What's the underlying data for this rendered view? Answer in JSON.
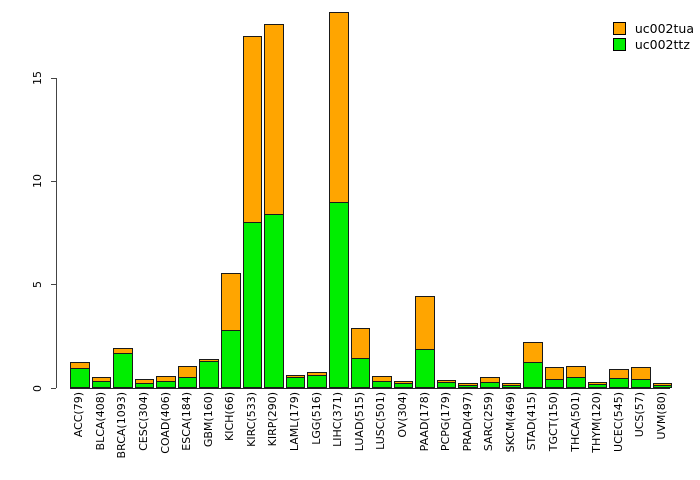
{
  "chart_data": {
    "type": "bar",
    "stacked": true,
    "title": "",
    "xlabel": "",
    "ylabel": "",
    "yticks": [
      0,
      5,
      10,
      15
    ],
    "ylim": [
      0,
      18.4
    ],
    "grid": false,
    "legend_position": "top-right",
    "bar_border_color": "#1a1a1a",
    "categories": [
      "ACC(79)",
      "BLCA(408)",
      "BRCA(1093)",
      "CESC(304)",
      "COAD(406)",
      "ESCA(184)",
      "GBM(160)",
      "KICH(66)",
      "KIRC(533)",
      "KIRP(290)",
      "LAML(179)",
      "LGG(516)",
      "LIHC(371)",
      "LUAD(515)",
      "LUSC(501)",
      "OV(304)",
      "PAAD(178)",
      "PCPG(179)",
      "PRAD(497)",
      "SARC(259)",
      "SKCM(469)",
      "STAD(415)",
      "TGCT(150)",
      "THCA(501)",
      "THYM(120)",
      "UCEC(545)",
      "UCS(57)",
      "UVM(80)"
    ],
    "series": [
      {
        "name": "uc002tua",
        "color": "#FFA500",
        "stack_position": "top",
        "values": [
          0.25,
          0.12,
          0.2,
          0.12,
          0.19,
          0.47,
          0.06,
          2.74,
          8.96,
          9.16,
          0.06,
          0.06,
          9.14,
          1.42,
          0.2,
          0.03,
          2.5,
          0.03,
          0.02,
          0.2,
          0.02,
          0.92,
          0.57,
          0.48,
          0.05,
          0.37,
          0.53,
          0.02
        ]
      },
      {
        "name": "uc002ttz",
        "color": "#00EE00",
        "stack_position": "bottom",
        "values": [
          0.85,
          0.25,
          1.6,
          0.17,
          0.24,
          0.45,
          1.2,
          2.7,
          7.92,
          8.32,
          0.42,
          0.55,
          8.9,
          1.35,
          0.22,
          0.15,
          1.8,
          0.2,
          0.06,
          0.19,
          0.06,
          1.16,
          0.32,
          0.45,
          0.1,
          0.4,
          0.35,
          0.06
        ]
      }
    ]
  },
  "legend": {
    "items": [
      {
        "label": "uc002tua",
        "color": "#FFA500"
      },
      {
        "label": "uc002ttz",
        "color": "#00EE00"
      }
    ]
  }
}
